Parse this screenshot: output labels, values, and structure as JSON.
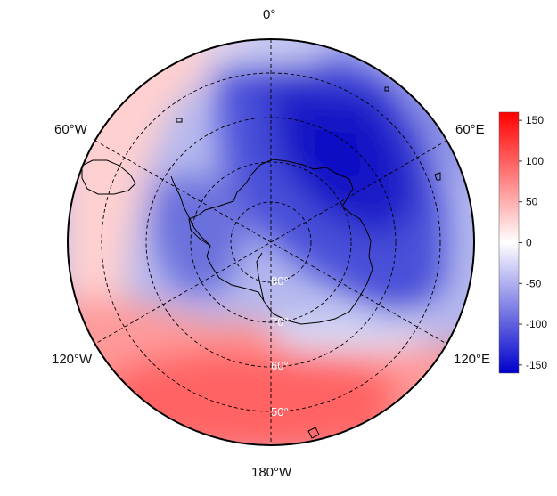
{
  "map": {
    "projection": "south-polar-stereographic",
    "field_colormap": [
      "#0000cc",
      "#ffffff",
      "#ff0000"
    ],
    "longitude_labels": {
      "top": "0°",
      "upper_right": "60°E",
      "lower_right": "120°E",
      "bottom": "180°W",
      "lower_left": "120°W",
      "upper_left": "60°W"
    },
    "latitude_labels": [
      "80°",
      "70°",
      "60°",
      "50°"
    ],
    "graticule_style": "dashed",
    "coastlines": "Antarctica, southern South America, sub-Antarctic islands"
  },
  "colorbar": {
    "min": -160,
    "max": 160,
    "ticks": [
      "150",
      "100",
      "50",
      "0",
      "-50",
      "-100",
      "-150"
    ],
    "colors": [
      "#0000cc",
      "#ffffff",
      "#ff0000"
    ]
  }
}
